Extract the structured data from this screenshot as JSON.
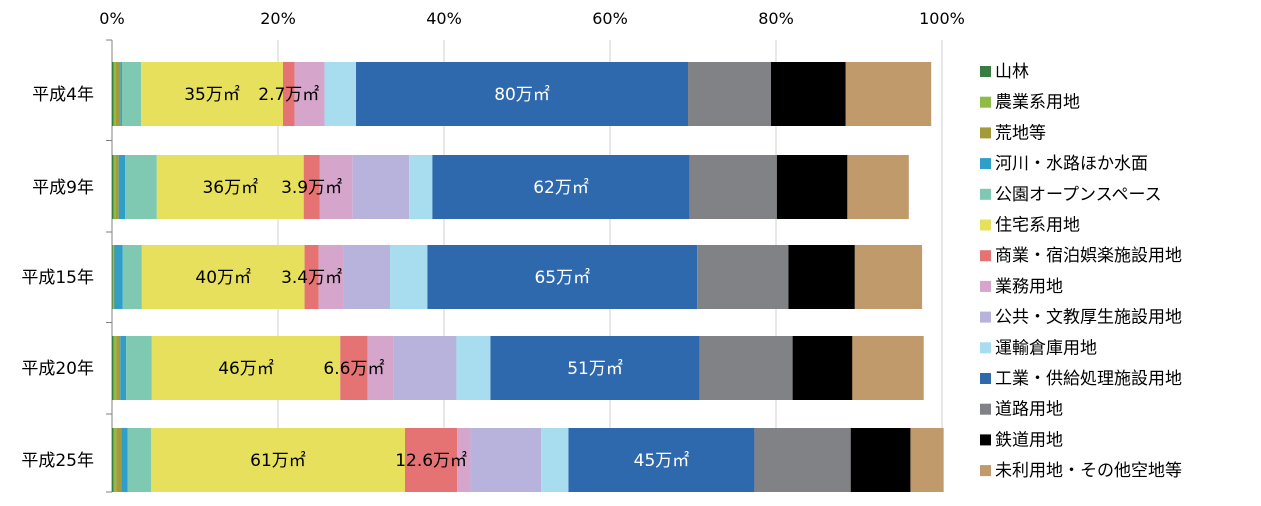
{
  "chart_data": {
    "type": "bar",
    "orientation": "horizontal",
    "stacked": true,
    "percent": true,
    "xlim": [
      0,
      100
    ],
    "x_ticks": [
      "0%",
      "20%",
      "40%",
      "60%",
      "80%",
      "100%"
    ],
    "tick_values": [
      0,
      20,
      40,
      60,
      80,
      100
    ],
    "x_tick_position": "top",
    "grid": "vertical",
    "legend_placement": "right",
    "categories": [
      "平成4年",
      "平成9年",
      "平成15年",
      "平成20年",
      "平成25年"
    ],
    "series": [
      {
        "name": "山林",
        "color": "#3a7d44",
        "values": [
          0.2,
          0.2,
          0.1,
          0.2,
          0.2
        ]
      },
      {
        "name": "農業系用地",
        "color": "#8fbc45",
        "values": [
          0.2,
          0.2,
          0.1,
          0.3,
          0.3
        ]
      },
      {
        "name": "荒地等",
        "color": "#a39a3a",
        "values": [
          0.6,
          0.4,
          0.1,
          0.5,
          0.6
        ]
      },
      {
        "name": "河川・水路ほか水面",
        "color": "#2f9fc9",
        "values": [
          0.2,
          0.8,
          1.0,
          0.7,
          0.8
        ]
      },
      {
        "name": "公園オープンスペース",
        "color": "#7fc8b1",
        "values": [
          2.3,
          3.8,
          2.3,
          3.1,
          2.8
        ]
      },
      {
        "name": "住宅系用地",
        "color": "#e6e05c",
        "values": [
          17.1,
          17.7,
          19.6,
          22.7,
          30.6
        ]
      },
      {
        "name": "商業・宿泊娯楽施設用地",
        "color": "#e57373",
        "values": [
          1.4,
          1.9,
          1.7,
          3.3,
          6.3
        ]
      },
      {
        "name": "業務用地",
        "color": "#d5a5cc",
        "values": [
          3.6,
          4.0,
          3.0,
          3.1,
          1.6
        ]
      },
      {
        "name": "公共・文教厚生施設用地",
        "color": "#b8b3dc",
        "values": [
          0.0,
          6.8,
          5.6,
          7.6,
          8.5
        ]
      },
      {
        "name": "運輸倉庫用地",
        "color": "#a8dcef",
        "values": [
          3.8,
          2.8,
          4.5,
          4.1,
          3.3
        ]
      },
      {
        "name": "工業・供給処理施設用地",
        "color": "#2f69ad",
        "values": [
          40.0,
          31.0,
          32.5,
          25.2,
          22.4
        ]
      },
      {
        "name": "道路用地",
        "color": "#808285",
        "values": [
          10.0,
          10.5,
          11.0,
          11.2,
          11.6
        ]
      },
      {
        "name": "鉄道用地",
        "color": "#000000",
        "values": [
          9.0,
          8.5,
          8.0,
          7.2,
          7.2
        ]
      },
      {
        "name": "未利用地・その他空地等",
        "color": "#c19a6b",
        "values": [
          10.3,
          7.4,
          8.1,
          8.6,
          4.0
        ]
      }
    ],
    "data_labels": [
      {
        "category": "平成4年",
        "labels": [
          {
            "series": "住宅系用地",
            "text": "35万㎡"
          },
          {
            "series": "商業・宿泊娯楽施設用地",
            "text": "2.7万㎡"
          },
          {
            "series": "工業・供給処理施設用地",
            "text": "80万㎡"
          }
        ]
      },
      {
        "category": "平成9年",
        "labels": [
          {
            "series": "住宅系用地",
            "text": "36万㎡"
          },
          {
            "series": "商業・宿泊娯楽施設用地",
            "text": "3.9万㎡"
          },
          {
            "series": "工業・供給処理施設用地",
            "text": "62万㎡"
          }
        ]
      },
      {
        "category": "平成15年",
        "labels": [
          {
            "series": "住宅系用地",
            "text": "40万㎡"
          },
          {
            "series": "商業・宿泊娯楽施設用地",
            "text": "3.4万㎡"
          },
          {
            "series": "工業・供給処理施設用地",
            "text": "65万㎡"
          }
        ]
      },
      {
        "category": "平成20年",
        "labels": [
          {
            "series": "住宅系用地",
            "text": "46万㎡"
          },
          {
            "series": "商業・宿泊娯楽施設用地",
            "text": "6.6万㎡"
          },
          {
            "series": "工業・供給処理施設用地",
            "text": "51万㎡"
          }
        ]
      },
      {
        "category": "平成25年",
        "labels": [
          {
            "series": "住宅系用地",
            "text": "61万㎡"
          },
          {
            "series": "商業・宿泊娯楽施設用地",
            "text": "12.6万㎡"
          },
          {
            "series": "工業・供給処理施設用地",
            "text": "45万㎡"
          }
        ]
      }
    ]
  }
}
